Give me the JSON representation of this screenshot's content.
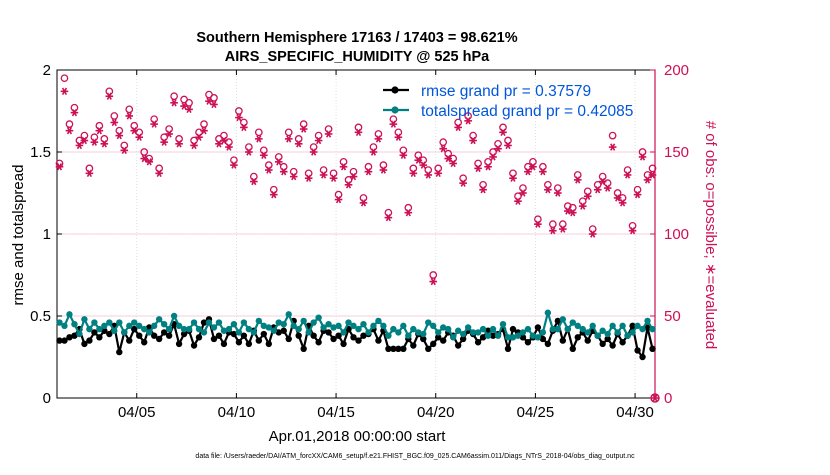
{
  "chart_data": {
    "type": "line",
    "title_line1": "Southern Hemisphere 17163 / 17403 = 98.621%",
    "title_line2": "AIRS_SPECIFIC_HUMIDITY @ 525 hPa",
    "xlabel": "Apr.01,2018 00:00:00 start",
    "ylabel_left": "rmse and totalspread",
    "ylabel_right": "# of obs: o=possible; ∗=evaluated",
    "xlim": [
      1.0,
      31.0
    ],
    "ylim_left": [
      0,
      2
    ],
    "ylim_right": [
      0,
      200
    ],
    "x_ticks": [
      5,
      10,
      15,
      20,
      25,
      30
    ],
    "x_tick_labels": [
      "04/05",
      "04/10",
      "04/15",
      "04/20",
      "04/25",
      "04/30"
    ],
    "y_left_ticks": [
      0,
      0.5,
      1,
      1.5,
      2
    ],
    "y_left_tick_labels": [
      "0",
      "0.5",
      "1",
      "1.5",
      "2"
    ],
    "y_right_ticks": [
      0,
      50,
      100,
      150,
      200
    ],
    "y_right_tick_labels": [
      "0",
      "50",
      "100",
      "150",
      "200"
    ],
    "legend": [
      {
        "label": "rmse grand pr = 0.37579",
        "color": "#000000"
      },
      {
        "label": "totalspread grand pr = 0.42085",
        "color": "#008080"
      }
    ],
    "legend_text_color": "#0055dd",
    "right_axis_color": "#cc1155",
    "footer": "data file: /Users/raeder/DAI/ATM_forcXX/CAM6_setup/f.e21.FHIST_BGC.f09_025.CAM6assim.011/Diags_NTrS_2018-04/obs_diag_output.nc",
    "series": [
      {
        "name": "rmse",
        "color": "#000000",
        "x": [
          1.125,
          1.375,
          1.625,
          1.875,
          2.125,
          2.375,
          2.625,
          2.875,
          3.125,
          3.375,
          3.625,
          3.875,
          4.125,
          4.375,
          4.625,
          4.875,
          5.125,
          5.375,
          5.625,
          5.875,
          6.125,
          6.375,
          6.625,
          6.875,
          7.125,
          7.375,
          7.625,
          7.875,
          8.125,
          8.375,
          8.625,
          8.875,
          9.125,
          9.375,
          9.625,
          9.875,
          10.125,
          10.375,
          10.625,
          10.875,
          11.125,
          11.375,
          11.625,
          11.875,
          12.125,
          12.375,
          12.625,
          12.875,
          13.125,
          13.375,
          13.625,
          13.875,
          14.125,
          14.375,
          14.625,
          14.875,
          15.125,
          15.375,
          15.625,
          15.875,
          16.125,
          16.375,
          16.625,
          16.875,
          17.125,
          17.375,
          17.625,
          17.875,
          18.125,
          18.375,
          18.625,
          18.875,
          19.125,
          19.375,
          19.625,
          19.875,
          20.125,
          20.375,
          20.625,
          20.875,
          21.125,
          21.375,
          21.625,
          21.875,
          22.125,
          22.375,
          22.625,
          22.875,
          23.125,
          23.375,
          23.625,
          23.875,
          24.125,
          24.375,
          24.625,
          24.875,
          25.125,
          25.375,
          25.625,
          25.875,
          26.125,
          26.375,
          26.625,
          26.875,
          27.125,
          27.375,
          27.625,
          27.875,
          28.125,
          28.375,
          28.625,
          28.875,
          29.125,
          29.375,
          29.625,
          29.875,
          30.125,
          30.375,
          30.625,
          30.875
        ],
        "values": [
          0.35,
          0.35,
          0.37,
          0.38,
          0.42,
          0.33,
          0.35,
          0.4,
          0.37,
          0.41,
          0.39,
          0.44,
          0.28,
          0.4,
          0.35,
          0.42,
          0.38,
          0.34,
          0.43,
          0.38,
          0.36,
          0.4,
          0.38,
          0.45,
          0.33,
          0.39,
          0.41,
          0.32,
          0.37,
          0.46,
          0.48,
          0.36,
          0.38,
          0.33,
          0.4,
          0.39,
          0.34,
          0.38,
          0.33,
          0.41,
          0.35,
          0.39,
          0.33,
          0.43,
          0.4,
          0.41,
          0.36,
          0.47,
          0.38,
          0.3,
          0.44,
          0.38,
          0.34,
          0.41,
          0.4,
          0.36,
          0.38,
          0.33,
          0.42,
          0.37,
          0.35,
          0.38,
          0.39,
          0.42,
          0.35,
          0.41,
          0.3,
          0.3,
          0.3,
          0.3,
          0.36,
          0.32,
          0.39,
          0.36,
          0.3,
          0.33,
          0.37,
          0.35,
          0.4,
          0.38,
          0.32,
          0.36,
          0.41,
          0.39,
          0.34,
          0.37,
          0.41,
          0.38,
          0.39,
          0.42,
          0.3,
          0.42,
          0.4,
          0.37,
          0.34,
          0.37,
          0.43,
          0.36,
          0.33,
          0.41,
          0.47,
          0.35,
          0.42,
          0.3,
          0.37,
          0.4,
          0.35,
          0.41,
          0.38,
          0.33,
          0.36,
          0.32,
          0.39,
          0.34,
          0.38,
          0.44,
          0.29,
          0.25,
          0.43,
          0.3
        ]
      },
      {
        "name": "totalspread",
        "color": "#008080",
        "x": [
          1.125,
          1.375,
          1.625,
          1.875,
          2.125,
          2.375,
          2.625,
          2.875,
          3.125,
          3.375,
          3.625,
          3.875,
          4.125,
          4.375,
          4.625,
          4.875,
          5.125,
          5.375,
          5.625,
          5.875,
          6.125,
          6.375,
          6.625,
          6.875,
          7.125,
          7.375,
          7.625,
          7.875,
          8.125,
          8.375,
          8.625,
          8.875,
          9.125,
          9.375,
          9.625,
          9.875,
          10.125,
          10.375,
          10.625,
          10.875,
          11.125,
          11.375,
          11.625,
          11.875,
          12.125,
          12.375,
          12.625,
          12.875,
          13.125,
          13.375,
          13.625,
          13.875,
          14.125,
          14.375,
          14.625,
          14.875,
          15.125,
          15.375,
          15.625,
          15.875,
          16.125,
          16.375,
          16.625,
          16.875,
          17.125,
          17.375,
          17.625,
          17.875,
          18.125,
          18.375,
          18.625,
          18.875,
          19.125,
          19.375,
          19.625,
          19.875,
          20.125,
          20.375,
          20.625,
          20.875,
          21.125,
          21.375,
          21.625,
          21.875,
          22.125,
          22.375,
          22.625,
          22.875,
          23.125,
          23.375,
          23.625,
          23.875,
          24.125,
          24.375,
          24.625,
          24.875,
          25.125,
          25.375,
          25.625,
          25.875,
          26.125,
          26.375,
          26.625,
          26.875,
          27.125,
          27.375,
          27.625,
          27.875,
          28.125,
          28.375,
          28.625,
          28.875,
          29.125,
          29.375,
          29.625,
          29.875,
          30.125,
          30.375,
          30.625,
          30.875
        ],
        "values": [
          0.46,
          0.44,
          0.51,
          0.45,
          0.39,
          0.48,
          0.42,
          0.46,
          0.42,
          0.44,
          0.46,
          0.41,
          0.46,
          0.4,
          0.44,
          0.46,
          0.44,
          0.42,
          0.4,
          0.44,
          0.48,
          0.45,
          0.42,
          0.5,
          0.44,
          0.42,
          0.42,
          0.46,
          0.42,
          0.4,
          0.46,
          0.43,
          0.46,
          0.41,
          0.42,
          0.45,
          0.4,
          0.46,
          0.42,
          0.4,
          0.47,
          0.44,
          0.43,
          0.41,
          0.46,
          0.45,
          0.51,
          0.44,
          0.42,
          0.47,
          0.4,
          0.46,
          0.49,
          0.43,
          0.45,
          0.43,
          0.44,
          0.4,
          0.46,
          0.44,
          0.42,
          0.45,
          0.4,
          0.44,
          0.47,
          0.44,
          0.38,
          0.42,
          0.4,
          0.44,
          0.38,
          0.42,
          0.4,
          0.39,
          0.46,
          0.44,
          0.4,
          0.43,
          0.42,
          0.37,
          0.41,
          0.39,
          0.43,
          0.4,
          0.4,
          0.42,
          0.38,
          0.42,
          0.38,
          0.45,
          0.37,
          0.37,
          0.38,
          0.4,
          0.42,
          0.38,
          0.37,
          0.4,
          0.52,
          0.42,
          0.42,
          0.48,
          0.42,
          0.46,
          0.44,
          0.42,
          0.4,
          0.44,
          0.38,
          0.41,
          0.39,
          0.44,
          0.4,
          0.44,
          0.38,
          0.4,
          0.44,
          0.42,
          0.47,
          0.42
        ]
      },
      {
        "name": "obs_possible",
        "marker": "o",
        "color": "#cc1155",
        "x": [
          1.125,
          1.375,
          1.625,
          1.875,
          2.125,
          2.375,
          2.625,
          2.875,
          3.125,
          3.375,
          3.625,
          3.875,
          4.125,
          4.375,
          4.625,
          4.875,
          5.125,
          5.375,
          5.625,
          5.875,
          6.125,
          6.375,
          6.625,
          6.875,
          7.125,
          7.375,
          7.625,
          7.875,
          8.125,
          8.375,
          8.625,
          8.875,
          9.125,
          9.375,
          9.625,
          9.875,
          10.125,
          10.375,
          10.625,
          10.875,
          11.125,
          11.375,
          11.625,
          11.875,
          12.125,
          12.375,
          12.625,
          12.875,
          13.125,
          13.375,
          13.625,
          13.875,
          14.125,
          14.375,
          14.625,
          14.875,
          15.125,
          15.375,
          15.625,
          15.875,
          16.125,
          16.375,
          16.625,
          16.875,
          17.125,
          17.375,
          17.625,
          17.875,
          18.125,
          18.375,
          18.625,
          18.875,
          19.125,
          19.375,
          19.625,
          19.875,
          20.125,
          20.375,
          20.625,
          20.875,
          21.125,
          21.375,
          21.625,
          21.875,
          22.125,
          22.375,
          22.625,
          22.875,
          23.125,
          23.375,
          23.625,
          23.875,
          24.125,
          24.375,
          24.625,
          24.875,
          25.125,
          25.375,
          25.625,
          25.875,
          26.125,
          26.375,
          26.625,
          26.875,
          27.125,
          27.375,
          27.625,
          27.875,
          28.125,
          28.375,
          28.625,
          28.875,
          29.125,
          29.375,
          29.625,
          29.875,
          30.125,
          30.375,
          30.625,
          30.875
        ],
        "values": [
          143,
          195,
          167,
          177,
          157,
          160,
          140,
          159,
          166,
          158,
          187,
          172,
          163,
          154,
          176,
          166,
          162,
          150,
          146,
          170,
          140,
          159,
          164,
          184,
          158,
          182,
          180,
          157,
          162,
          167,
          185,
          183,
          158,
          160,
          156,
          145,
          175,
          168,
          153,
          135,
          162,
          151,
          142,
          127,
          147,
          141,
          162,
          138,
          158,
          167,
          137,
          153,
          160,
          139,
          164,
          137,
          124,
          144,
          133,
          138,
          165,
          122,
          141,
          153,
          161,
          142,
          113,
          170,
          162,
          151,
          116,
          140,
          148,
          145,
          139,
          75,
          140,
          156,
          149,
          146,
          168,
          134,
          172,
          160,
          143,
          130,
          144,
          150,
          155,
          165,
          157,
          137,
          123,
          128,
          141,
          144,
          109,
          141,
          130,
          106,
          128,
          106,
          117,
          116,
          136,
          120,
          126,
          103,
          130,
          135,
          131,
          160,
          125,
          122,
          139,
          105,
          127,
          150,
          136,
          140
        ]
      },
      {
        "name": "obs_evaluated",
        "marker": "*",
        "color": "#cc1155",
        "x": [
          1.125,
          1.375,
          1.625,
          1.875,
          2.125,
          2.375,
          2.625,
          2.875,
          3.125,
          3.375,
          3.625,
          3.875,
          4.125,
          4.375,
          4.625,
          4.875,
          5.125,
          5.375,
          5.625,
          5.875,
          6.125,
          6.375,
          6.625,
          6.875,
          7.125,
          7.375,
          7.625,
          7.875,
          8.125,
          8.375,
          8.625,
          8.875,
          9.125,
          9.375,
          9.625,
          9.875,
          10.125,
          10.375,
          10.625,
          10.875,
          11.125,
          11.375,
          11.625,
          11.875,
          12.125,
          12.375,
          12.625,
          12.875,
          13.125,
          13.375,
          13.625,
          13.875,
          14.125,
          14.375,
          14.625,
          14.875,
          15.125,
          15.375,
          15.625,
          15.875,
          16.125,
          16.375,
          16.625,
          16.875,
          17.125,
          17.375,
          17.625,
          17.875,
          18.125,
          18.375,
          18.625,
          18.875,
          19.125,
          19.375,
          19.625,
          19.875,
          20.125,
          20.375,
          20.625,
          20.875,
          21.125,
          21.375,
          21.625,
          21.875,
          22.125,
          22.375,
          22.625,
          22.875,
          23.125,
          23.375,
          23.625,
          23.875,
          24.125,
          24.375,
          24.625,
          24.875,
          25.125,
          25.375,
          25.625,
          25.875,
          26.125,
          26.375,
          26.625,
          26.875,
          27.125,
          27.375,
          27.625,
          27.875,
          28.125,
          28.375,
          28.625,
          28.875,
          29.125,
          29.375,
          29.625,
          29.875,
          30.125,
          30.375,
          30.625,
          30.875
        ],
        "values": [
          141,
          187,
          163,
          174,
          154,
          157,
          137,
          156,
          163,
          155,
          184,
          168,
          160,
          151,
          172,
          163,
          159,
          146,
          144,
          167,
          137,
          156,
          161,
          180,
          155,
          178,
          176,
          154,
          159,
          163,
          181,
          179,
          155,
          157,
          153,
          142,
          171,
          165,
          150,
          132,
          158,
          148,
          139,
          124,
          144,
          138,
          158,
          135,
          155,
          164,
          134,
          150,
          157,
          136,
          161,
          134,
          121,
          141,
          130,
          135,
          162,
          119,
          138,
          150,
          158,
          139,
          110,
          167,
          159,
          148,
          113,
          137,
          145,
          142,
          136,
          71,
          137,
          152,
          146,
          143,
          165,
          131,
          169,
          157,
          140,
          127,
          141,
          147,
          152,
          162,
          154,
          134,
          120,
          125,
          138,
          141,
          106,
          138,
          127,
          102,
          125,
          103,
          114,
          113,
          133,
          117,
          123,
          100,
          127,
          132,
          128,
          153,
          122,
          119,
          136,
          102,
          124,
          147,
          133,
          136
        ]
      }
    ]
  }
}
